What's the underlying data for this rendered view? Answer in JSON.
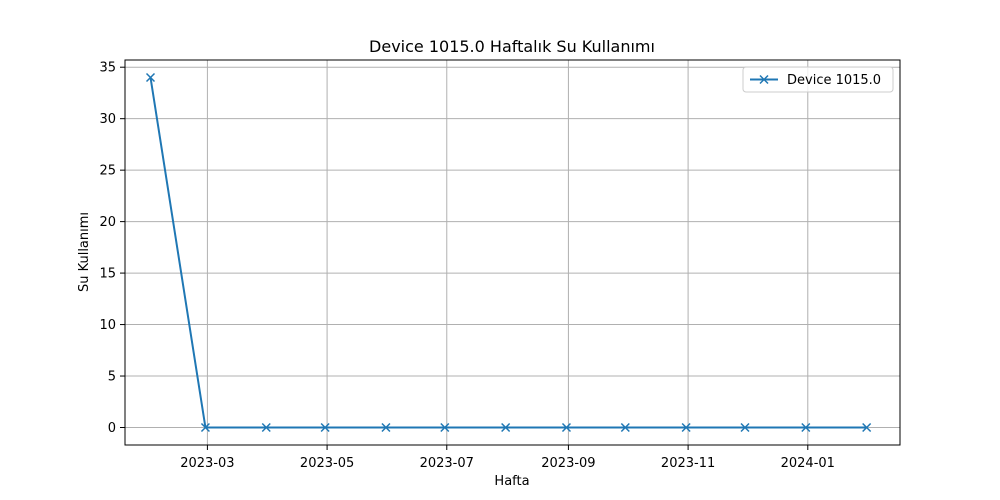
{
  "chart_data": {
    "type": "line",
    "title": "Device 1015.0 Haftalık Su Kullanımı",
    "xlabel": "Hafta",
    "ylabel": "Su Kullanımı",
    "x_type": "date",
    "xlim": [
      "2023-01-18",
      "2024-02-17"
    ],
    "ylim": [
      -1.7,
      35.7
    ],
    "x_ticks": [
      "2023-03-01",
      "2023-05-01",
      "2023-07-01",
      "2023-09-01",
      "2023-11-01",
      "2024-01-01"
    ],
    "x_tick_labels": [
      "2023-03",
      "2023-05",
      "2023-07",
      "2023-09",
      "2023-11",
      "2024-01"
    ],
    "y_ticks": [
      0,
      5,
      10,
      15,
      20,
      25,
      30,
      35
    ],
    "y_tick_labels": [
      "0",
      "5",
      "10",
      "15",
      "20",
      "25",
      "30",
      "35"
    ],
    "grid": true,
    "legend": {
      "position": "top-right"
    },
    "series": [
      {
        "name": "Device 1015.0",
        "color": "#1f77b4",
        "marker": "x",
        "x": [
          "2023-01-31",
          "2023-02-28",
          "2023-03-31",
          "2023-04-30",
          "2023-05-31",
          "2023-06-30",
          "2023-07-31",
          "2023-08-31",
          "2023-09-30",
          "2023-10-31",
          "2023-11-30",
          "2023-12-31",
          "2024-01-31"
        ],
        "values": [
          34,
          0,
          0,
          0,
          0,
          0,
          0,
          0,
          0,
          0,
          0,
          0,
          0
        ]
      }
    ]
  }
}
